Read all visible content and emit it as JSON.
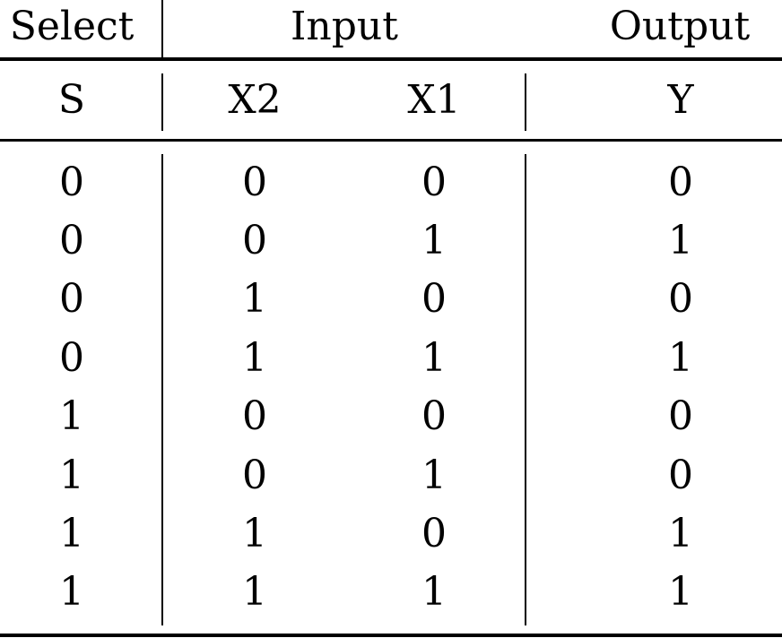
{
  "table": {
    "group_headers": {
      "select": "Select",
      "input": "Input",
      "output": "Output"
    },
    "column_headers": [
      "S",
      "X2",
      "X1",
      "Y"
    ],
    "rows": [
      [
        "0",
        "0",
        "0",
        "0"
      ],
      [
        "0",
        "0",
        "1",
        "1"
      ],
      [
        "0",
        "1",
        "0",
        "0"
      ],
      [
        "0",
        "1",
        "1",
        "1"
      ],
      [
        "1",
        "0",
        "0",
        "0"
      ],
      [
        "1",
        "0",
        "1",
        "0"
      ],
      [
        "1",
        "1",
        "0",
        "1"
      ],
      [
        "1",
        "1",
        "1",
        "1"
      ]
    ]
  }
}
